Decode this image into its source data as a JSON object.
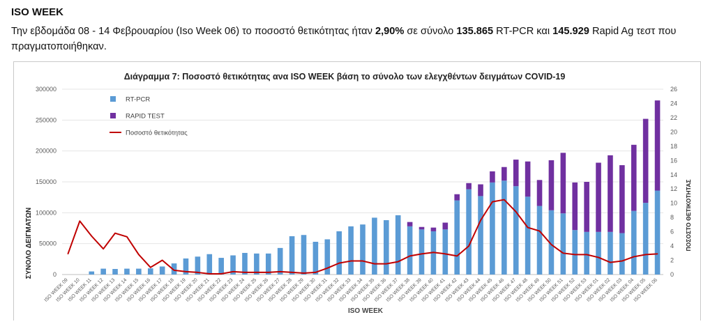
{
  "header": {
    "title": "ISO WEEK",
    "sentence_part1": "Την εβδομάδα 08 - 14 Φεβρουαρίου (Iso Week 06) το ποσοστό θετικότητας ήταν ",
    "rate": "2,90%",
    "sentence_part2": " σε σύνολο ",
    "rtpcr_total": "135.865",
    "sentence_part3": " RT-PCR και ",
    "rapid_total": "145.929",
    "sentence_part4": " Rapid Ag τεστ που πραγματοποιήθηκαν."
  },
  "chart_data": {
    "type": "bar",
    "title": "Διάγραμμα 7: Ποσοστό  θετικότητας ανα ISO WEEK  βάση το σύνολο των ελεγχθέντων δειγμάτων COVID-19",
    "xlabel": "ISO WEEK",
    "ylabel": "ΣΥΝΟΛΟ ΔΕΙΓΜΑΤΩΝ",
    "y2label": "ΠΟΣΟΣΤΟ ΘΕΤΙΚΟΤΗΤΑΣ",
    "ylim": [
      0,
      300000
    ],
    "y2lim": [
      0,
      26
    ],
    "yticks": [
      0,
      50000,
      100000,
      150000,
      200000,
      250000,
      300000
    ],
    "y2ticks": [
      0,
      2,
      4,
      6,
      8,
      10,
      12,
      14,
      16,
      18,
      20,
      22,
      24,
      26
    ],
    "stacked": true,
    "legend_position": "top-left",
    "grid": true,
    "categories": [
      "ISO WEEK 09",
      "ISO WEEK 10",
      "ISO WEEK 11",
      "ISO WEEK 12",
      "ISO WEEK 13",
      "ISO WEEK 14",
      "ISO WEEK 15",
      "ISO WEEK 16",
      "ISO WEEK 17",
      "ISO WEEK 18",
      "ISO WEEK 19",
      "ISO WEEK 20",
      "ISO WEEK 21",
      "ISO WEEK 22",
      "ISO WEEK 23",
      "ISO WEEK 24",
      "ISO WEEK 25",
      "ISO WEEK 26",
      "ISO WEEK 27",
      "ISO WEEK 28",
      "ISO WEEK 29",
      "ISO WEEK 30",
      "ISO WEEK 31",
      "ISO WEEK 32",
      "ISO WEEK 33",
      "ISO WEEK 34",
      "ISO WEEK 35",
      "ISO WEEK 36",
      "ISO WEEK 37",
      "ISO WEEK 38",
      "ISO WEEK 39",
      "ISO WEEK 40",
      "ISO WEEK 41",
      "ISO WEEK 42",
      "ISO WEEK 43",
      "ISO WEEK 44",
      "ISO WEEK 45",
      "ISO WEEK 46",
      "ISO WEEK 47",
      "ISO WEEK 48",
      "ISO WEEK 49",
      "ISO WEEK 50",
      "ISO WEEK 51",
      "ISO WEEK 52",
      "ISO WEEK 53",
      "ISO WEEK 01",
      "ISO WEEK 02",
      "ISO WEEK 03",
      "ISO WEEK 04",
      "ISO WEEK 05",
      "ISO WEEK 06"
    ],
    "series": [
      {
        "name": "RT-PCR",
        "color": "#5b9bd5",
        "axis": "left",
        "values": [
          0,
          0,
          5000,
          9500,
          9000,
          9500,
          9500,
          10000,
          13000,
          18000,
          26000,
          29000,
          33000,
          27000,
          31000,
          35000,
          34000,
          34000,
          43000,
          62000,
          64000,
          53000,
          57000,
          70000,
          78000,
          81000,
          92000,
          88000,
          96000,
          78000,
          73000,
          70000,
          73000,
          120000,
          138000,
          127000,
          149000,
          152000,
          143000,
          126000,
          111000,
          104000,
          99000,
          72000,
          69000,
          69000,
          69000,
          67000,
          103000,
          116000,
          135865
        ]
      },
      {
        "name": "RAPID TEST",
        "color": "#7030a0",
        "axis": "left",
        "values": [
          0,
          0,
          0,
          0,
          0,
          0,
          0,
          0,
          0,
          0,
          0,
          0,
          0,
          0,
          0,
          0,
          0,
          0,
          0,
          0,
          0,
          0,
          0,
          0,
          0,
          0,
          0,
          0,
          0,
          7000,
          4000,
          6000,
          11000,
          10000,
          10000,
          19000,
          18000,
          22000,
          43000,
          57000,
          42000,
          81000,
          98000,
          77000,
          81000,
          112000,
          124000,
          110000,
          107000,
          136000,
          145929
        ]
      },
      {
        "name": "Ποσοστό θετικότητας",
        "type": "line",
        "color": "#c00000",
        "axis": "right",
        "values": [
          2.9,
          7.5,
          5.4,
          3.6,
          5.8,
          5.3,
          2.8,
          1.0,
          2.0,
          0.6,
          0.4,
          0.3,
          0.1,
          0.1,
          0.4,
          0.3,
          0.3,
          0.3,
          0.4,
          0.3,
          0.2,
          0.3,
          0.9,
          1.6,
          1.9,
          1.9,
          1.5,
          1.5,
          1.8,
          2.6,
          2.9,
          3.1,
          2.9,
          2.6,
          4.0,
          7.6,
          10.2,
          10.5,
          8.8,
          6.6,
          6.1,
          4.2,
          3.0,
          2.8,
          2.8,
          2.4,
          1.7,
          1.9,
          2.5,
          2.8,
          2.9
        ]
      }
    ]
  }
}
